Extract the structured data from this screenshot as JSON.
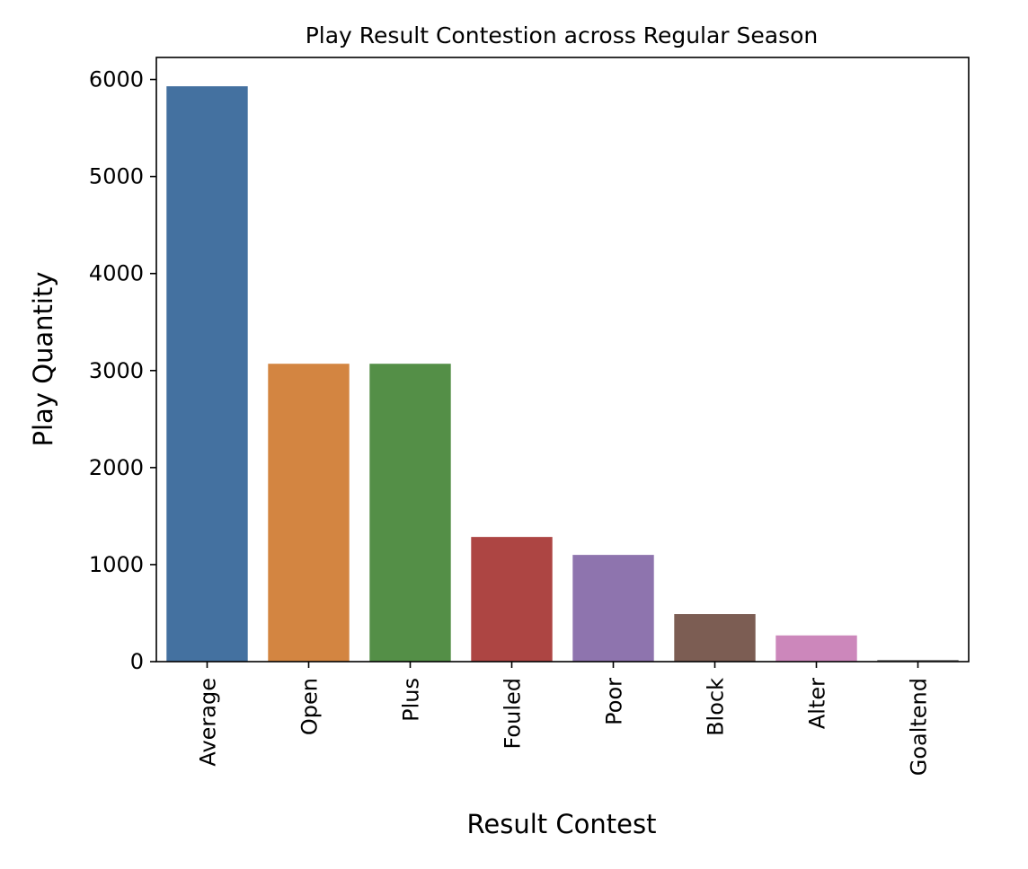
{
  "chart_data": {
    "type": "bar",
    "title": "Play Result Contestion across Regular Season",
    "xlabel": "Result Contest",
    "ylabel": "Play Quantity",
    "categories": [
      "Average",
      "Open",
      "Plus",
      "Fouled",
      "Poor",
      "Block",
      "Alter",
      "Goaltend"
    ],
    "values": [
      5930,
      3070,
      3070,
      1285,
      1100,
      490,
      270,
      18
    ],
    "colors": [
      "#4471a0",
      "#d38541",
      "#548f47",
      "#ad4543",
      "#8e74ae",
      "#7c5d53",
      "#cc87bb",
      "#808080"
    ],
    "yticks": [
      0,
      1000,
      2000,
      3000,
      4000,
      5000,
      6000
    ],
    "ylim": [
      0,
      6227
    ],
    "grid": false,
    "legend": "none"
  }
}
